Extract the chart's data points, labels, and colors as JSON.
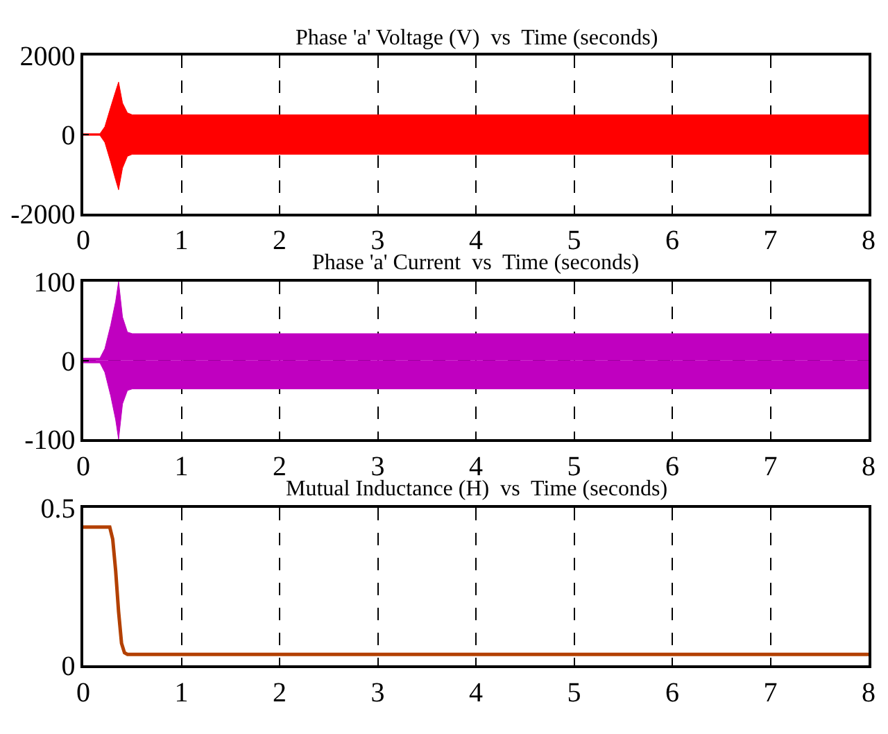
{
  "chart_data": [
    {
      "type": "line",
      "title": "Phase 'a' Voltage (V)  vs  Time (seconds)",
      "x": [
        0,
        0.17,
        0.22,
        0.28,
        0.33,
        0.36,
        0.4,
        0.45,
        0.5,
        8
      ],
      "xlim": [
        0,
        8
      ],
      "xticks": [
        0,
        1,
        2,
        3,
        4,
        5,
        6,
        7,
        8
      ],
      "ylim": [
        -2000,
        2000
      ],
      "yticks": [
        -2000,
        0,
        2000
      ],
      "grid": true,
      "line_style": "solid",
      "series": [
        {
          "type": "area",
          "color": "#ff0000",
          "values": [
            20,
            20,
            200,
            700,
            1100,
            1330,
            800,
            550,
            500,
            500
          ]
        },
        {
          "type": "area",
          "color": "#ff0000",
          "values": [
            -20,
            -20,
            -200,
            -700,
            -1150,
            -1400,
            -850,
            -550,
            -500,
            -500
          ]
        }
      ]
    },
    {
      "type": "line",
      "title": "Phase 'a' Current  vs  Time (seconds)",
      "x": [
        0,
        0.17,
        0.22,
        0.28,
        0.33,
        0.36,
        0.4,
        0.45,
        0.5,
        8
      ],
      "xlim": [
        0,
        8
      ],
      "xticks": [
        0,
        1,
        2,
        3,
        4,
        5,
        6,
        7,
        8
      ],
      "ylim": [
        -100,
        100
      ],
      "yticks": [
        -100,
        0,
        100
      ],
      "grid": true,
      "line_style": "solid",
      "series": [
        {
          "type": "area",
          "color": "#c000c0",
          "values": [
            3,
            3,
            15,
            45,
            75,
            100,
            55,
            36,
            34,
            34
          ]
        },
        {
          "type": "area",
          "color": "#c000c0",
          "values": [
            -3,
            -3,
            -15,
            -45,
            -75,
            -100,
            -55,
            -38,
            -36,
            -36
          ]
        }
      ]
    },
    {
      "type": "line",
      "title": "Mutual Inductance (H)  vs  Time (seconds)",
      "x": [
        0,
        0.27,
        0.3,
        0.33,
        0.36,
        0.39,
        0.42,
        0.45,
        8
      ],
      "xlim": [
        0,
        8
      ],
      "xticks": [
        0,
        1,
        2,
        3,
        4,
        5,
        6,
        7,
        8
      ],
      "ylim": [
        0,
        0.5
      ],
      "yticks": [
        0,
        0.5
      ],
      "grid": true,
      "line_style": "solid",
      "series": [
        {
          "color": "#b34000",
          "values": [
            0.438,
            0.438,
            0.4,
            0.3,
            0.17,
            0.07,
            0.04,
            0.035,
            0.035
          ]
        }
      ]
    }
  ]
}
